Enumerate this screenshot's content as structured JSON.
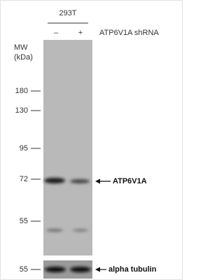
{
  "cell_line": "293T",
  "lanes": [
    "–",
    "+"
  ],
  "treatment": "ATP6V1A shRNA",
  "mw_label": [
    "MW",
    "(kDa)"
  ],
  "markers": [
    180,
    130,
    95,
    72,
    55
  ],
  "lower_marker": 55,
  "target_label": "ATP6V1A",
  "loading_control_label": "alpha tubulin"
}
